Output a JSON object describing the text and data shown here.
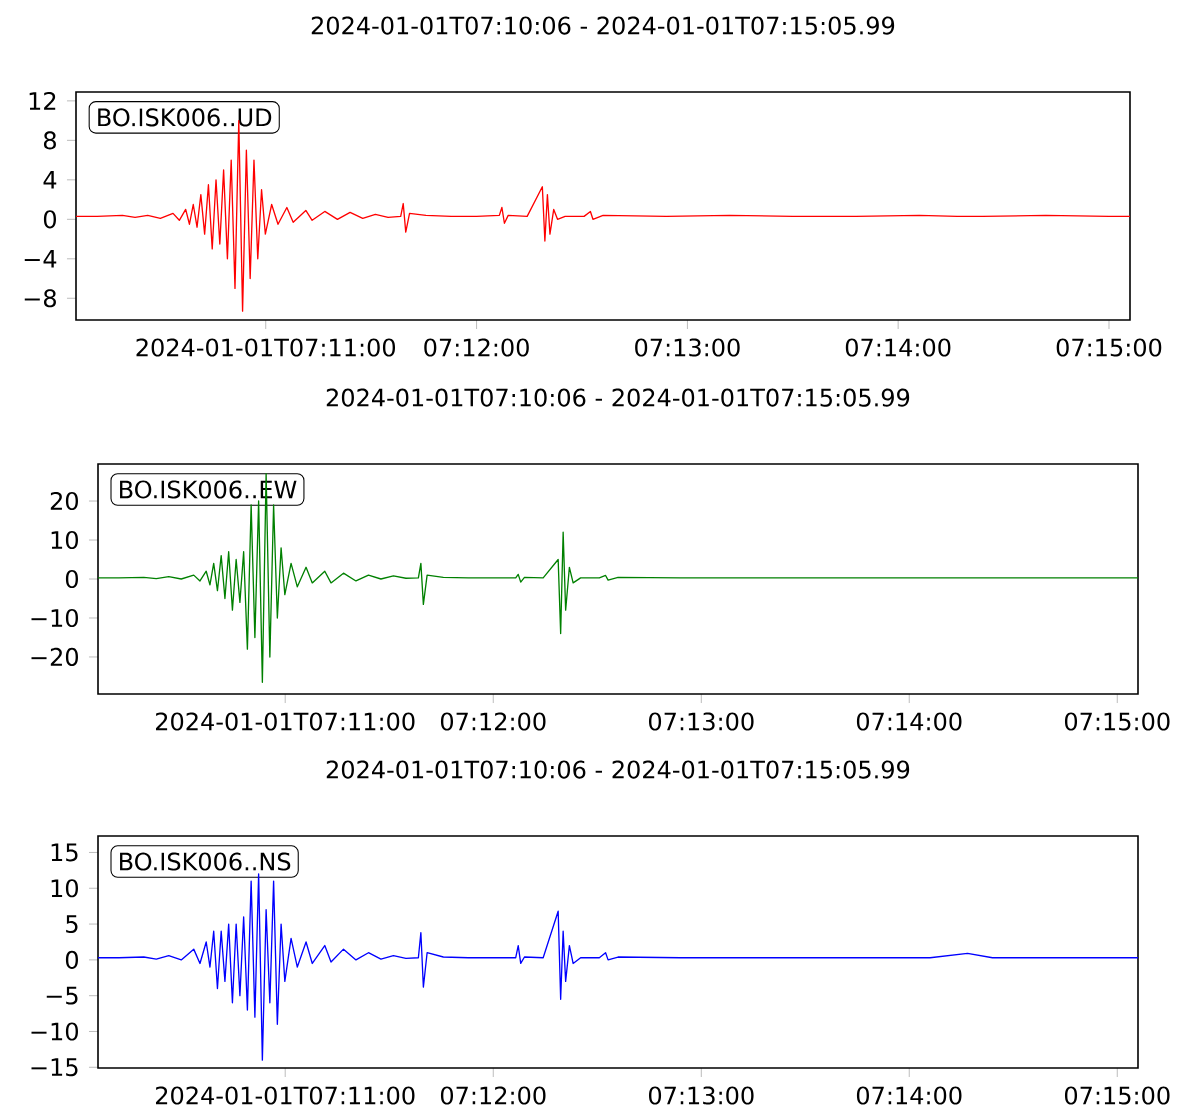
{
  "chart_data": [
    {
      "type": "line",
      "title": "2024-01-01T07:10:06  -  2024-01-01T07:15:05.99",
      "annotations": [
        "BO.ISK006..UD"
      ],
      "x": [
        7.16833,
        7.17,
        7.172,
        7.173,
        7.174,
        7.175,
        7.176,
        7.1765,
        7.177,
        7.1773,
        7.1776,
        7.1779,
        7.1782,
        7.1785,
        7.1788,
        7.1791,
        7.1794,
        7.1797,
        7.18,
        7.1803,
        7.1806,
        7.1809,
        7.1812,
        7.1815,
        7.1818,
        7.1821,
        7.1824,
        7.1827,
        7.183,
        7.1833,
        7.1838,
        7.1843,
        7.185,
        7.1855,
        7.1865,
        7.187,
        7.188,
        7.189,
        7.19,
        7.191,
        7.192,
        7.193,
        7.194,
        7.1942,
        7.1944,
        7.1947,
        7.196,
        7.198,
        7.2,
        7.2018,
        7.202,
        7.2022,
        7.2025,
        7.204,
        7.2052,
        7.2054,
        7.2056,
        7.2058,
        7.2061,
        7.2064,
        7.207,
        7.2085,
        7.209,
        7.2092,
        7.21,
        7.215,
        7.22,
        7.225,
        7.23,
        7.235,
        7.238,
        7.24,
        7.245,
        7.25,
        7.25166
      ],
      "series": [
        {
          "color": "#ff0000",
          "values": [
            0.3,
            0.3,
            0.4,
            0.2,
            0.4,
            0.1,
            0.6,
            -0.1,
            1,
            -0.5,
            1.5,
            -0.8,
            2.5,
            -1.5,
            3.5,
            -3,
            4,
            -2.5,
            5,
            -4,
            6,
            -7,
            10,
            -9.3,
            7,
            -6,
            6,
            -4,
            3,
            -1.5,
            1.5,
            -0.5,
            1.2,
            -0.3,
            0.9,
            -0.1,
            0.8,
            0,
            0.7,
            0.1,
            0.5,
            0.2,
            0.3,
            1.6,
            -1.3,
            0.6,
            0.4,
            0.3,
            0.3,
            0.4,
            1.2,
            -0.4,
            0.4,
            0.3,
            3.3,
            -2.2,
            2.5,
            -1.5,
            1,
            0,
            0.3,
            0.3,
            0.8,
            0,
            0.4,
            0.3,
            0.4,
            0.3,
            0.3,
            0.4,
            0.3,
            0.3,
            0.4,
            0.3,
            0.3
          ]
        }
      ],
      "xlim": [
        7.16833,
        7.25166
      ],
      "ylim": [
        -10.2,
        12.9
      ],
      "xticks": [
        {
          "value": 7.18333,
          "label": "2024-01-01T07:11:00"
        },
        {
          "value": 7.2,
          "label": "07:12:00"
        },
        {
          "value": 7.21667,
          "label": "07:13:00"
        },
        {
          "value": 7.23333,
          "label": "07:14:00"
        },
        {
          "value": 7.25,
          "label": "07:15:00"
        }
      ],
      "yticks": [
        {
          "value": -8,
          "label": "−8"
        },
        {
          "value": -4,
          "label": "−4"
        },
        0,
        4,
        8,
        12
      ]
    },
    {
      "type": "line",
      "title": "2024-01-01T07:10:06  -  2024-01-01T07:15:05.99",
      "annotations": [
        "BO.ISK006..EW"
      ],
      "x": [
        7.16833,
        7.17,
        7.172,
        7.173,
        7.174,
        7.175,
        7.176,
        7.1765,
        7.177,
        7.1773,
        7.1776,
        7.1779,
        7.1782,
        7.1785,
        7.1788,
        7.1791,
        7.1794,
        7.1797,
        7.18,
        7.1803,
        7.1806,
        7.1809,
        7.1812,
        7.1815,
        7.1818,
        7.1821,
        7.1824,
        7.1827,
        7.183,
        7.1833,
        7.1838,
        7.1843,
        7.185,
        7.1855,
        7.1865,
        7.187,
        7.188,
        7.189,
        7.19,
        7.191,
        7.192,
        7.193,
        7.194,
        7.1942,
        7.1944,
        7.1947,
        7.196,
        7.198,
        7.2,
        7.2018,
        7.202,
        7.2022,
        7.2025,
        7.204,
        7.2052,
        7.2054,
        7.2056,
        7.2058,
        7.2061,
        7.2064,
        7.207,
        7.2085,
        7.209,
        7.2092,
        7.21,
        7.215,
        7.22,
        7.225,
        7.23,
        7.235,
        7.238,
        7.24,
        7.245,
        7.25,
        7.25166
      ],
      "series": [
        {
          "color": "#008000",
          "values": [
            0.3,
            0.3,
            0.4,
            0.1,
            0.6,
            0,
            1,
            -0.5,
            2,
            -1.5,
            4,
            -3,
            6,
            -5,
            7,
            -8,
            5,
            -6,
            7,
            -18,
            19,
            -15,
            20,
            -26.5,
            27,
            -20,
            19,
            -10,
            8,
            -4,
            4,
            -2,
            3,
            -1,
            2,
            -1,
            1.5,
            -0.5,
            1,
            0,
            0.8,
            0.2,
            0.3,
            4,
            -6.5,
            1,
            0.4,
            0.3,
            0.3,
            0.3,
            1.2,
            -0.8,
            0.4,
            0.3,
            5,
            -14,
            12,
            -8,
            3,
            -1,
            0.3,
            0.3,
            0.9,
            -0.3,
            0.4,
            0.3,
            0.3,
            0.3,
            0.3,
            0.3,
            0.3,
            0.3,
            0.3,
            0.3,
            0.3
          ]
        }
      ],
      "xlim": [
        7.16833,
        7.25166
      ],
      "ylim": [
        -29.5,
        29.5
      ],
      "xticks": [
        {
          "value": 7.18333,
          "label": "2024-01-01T07:11:00"
        },
        {
          "value": 7.2,
          "label": "07:12:00"
        },
        {
          "value": 7.21667,
          "label": "07:13:00"
        },
        {
          "value": 7.23333,
          "label": "07:14:00"
        },
        {
          "value": 7.25,
          "label": "07:15:00"
        }
      ],
      "yticks": [
        {
          "value": -20,
          "label": "−20"
        },
        {
          "value": -10,
          "label": "−10"
        },
        0,
        10,
        20
      ]
    },
    {
      "type": "line",
      "title": "2024-01-01T07:10:06  -  2024-01-01T07:15:05.99",
      "annotations": [
        "BO.ISK006..NS"
      ],
      "x": [
        7.16833,
        7.17,
        7.172,
        7.173,
        7.174,
        7.175,
        7.176,
        7.1765,
        7.177,
        7.1773,
        7.1776,
        7.1779,
        7.1782,
        7.1785,
        7.1788,
        7.1791,
        7.1794,
        7.1797,
        7.18,
        7.1803,
        7.1806,
        7.1809,
        7.1812,
        7.1815,
        7.1818,
        7.1821,
        7.1824,
        7.1827,
        7.183,
        7.1833,
        7.1838,
        7.1843,
        7.185,
        7.1855,
        7.1865,
        7.187,
        7.188,
        7.189,
        7.19,
        7.191,
        7.192,
        7.193,
        7.194,
        7.1942,
        7.1944,
        7.1947,
        7.196,
        7.198,
        7.2,
        7.2018,
        7.202,
        7.2022,
        7.2025,
        7.204,
        7.2052,
        7.2054,
        7.2056,
        7.2058,
        7.2061,
        7.2064,
        7.207,
        7.2085,
        7.209,
        7.2092,
        7.21,
        7.215,
        7.22,
        7.225,
        7.23,
        7.235,
        7.238,
        7.24,
        7.245,
        7.25,
        7.25166
      ],
      "series": [
        {
          "color": "#0000ff",
          "values": [
            0.3,
            0.3,
            0.4,
            0.1,
            0.6,
            0,
            1.5,
            -0.5,
            2.5,
            -1,
            4,
            -4,
            4,
            -3,
            5,
            -6,
            5,
            -5,
            6,
            -7,
            11,
            -8,
            12,
            -14,
            7,
            -6,
            11,
            -9,
            5,
            -3,
            3,
            -1,
            2.5,
            -0.5,
            2,
            -0.3,
            1.5,
            0,
            1,
            0.1,
            0.6,
            0.2,
            0.3,
            3.8,
            -3.8,
            1,
            0.4,
            0.3,
            0.3,
            0.3,
            2,
            -0.5,
            0.4,
            0.3,
            6.8,
            -5.5,
            4,
            -3,
            2,
            -0.5,
            0.3,
            0.3,
            1,
            0,
            0.4,
            0.3,
            0.3,
            0.3,
            0.3,
            0.3,
            0.9,
            0.3,
            0.3,
            0.3,
            0.3
          ]
        }
      ],
      "xlim": [
        7.16833,
        7.25166
      ],
      "ylim": [
        -15.1,
        17.3
      ],
      "xticks": [
        {
          "value": 7.18333,
          "label": "2024-01-01T07:11:00"
        },
        {
          "value": 7.2,
          "label": "07:12:00"
        },
        {
          "value": 7.21667,
          "label": "07:13:00"
        },
        {
          "value": 7.23333,
          "label": "07:14:00"
        },
        {
          "value": 7.25,
          "label": "07:15:00"
        }
      ],
      "yticks": [
        {
          "value": -15,
          "label": "−15"
        },
        {
          "value": -10,
          "label": "−10"
        },
        {
          "value": -5,
          "label": "−5"
        },
        0,
        5,
        10,
        15
      ]
    }
  ]
}
